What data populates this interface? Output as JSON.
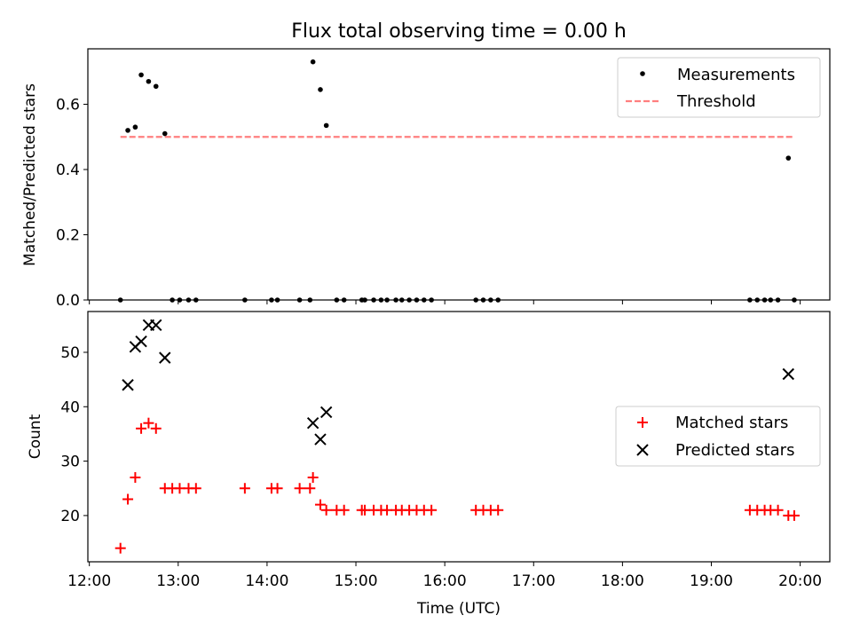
{
  "figure": {
    "title": "Flux total observing time = 0.00 h"
  },
  "chart_data": [
    {
      "type": "scatter",
      "title": "Flux total observing time = 0.00 h",
      "ylabel": "Matched/Predicted stars",
      "xlabel": "",
      "ylim": [
        0,
        0.77
      ],
      "yticks": [
        0.0,
        0.2,
        0.4,
        0.6
      ],
      "ytick_labels": [
        "0.0",
        "0.2",
        "0.4",
        "0.6"
      ],
      "legend_position": "upper-right",
      "series": [
        {
          "name": "Measurements",
          "style": "dot",
          "color": "#000000",
          "x": [
            "12:21",
            "12:26",
            "12:31",
            "12:35",
            "12:40",
            "12:45",
            "12:51",
            "12:56",
            "13:01",
            "13:07",
            "13:12",
            "13:45",
            "14:03",
            "14:07",
            "14:22",
            "14:29",
            "14:31",
            "14:36",
            "14:40",
            "14:47",
            "14:52",
            "15:04",
            "15:06",
            "15:12",
            "15:17",
            "15:21",
            "15:27",
            "15:31",
            "15:36",
            "15:41",
            "15:46",
            "15:51",
            "16:21",
            "16:26",
            "16:31",
            "16:36",
            "19:26",
            "19:31",
            "19:36",
            "19:40",
            "19:45",
            "19:52",
            "19:56"
          ],
          "y": [
            0,
            0.52,
            0.53,
            0.69,
            0.67,
            0.655,
            0.51,
            0,
            0,
            0,
            0,
            0,
            0,
            0,
            0,
            0,
            0.73,
            0.645,
            0.535,
            0,
            0,
            0,
            0,
            0,
            0,
            0,
            0,
            0,
            0,
            0,
            0,
            0,
            0,
            0,
            0,
            0,
            0,
            0,
            0,
            0,
            0,
            0.435,
            0
          ]
        },
        {
          "name": "Threshold",
          "style": "dashed-line",
          "color": "#ff7f7f",
          "x": [
            "12:21",
            "19:56"
          ],
          "y": [
            0.5,
            0.5
          ]
        }
      ]
    },
    {
      "type": "scatter",
      "ylabel": "Count",
      "xlabel": "Time (UTC)",
      "ylim": [
        11.5,
        57.5
      ],
      "yticks": [
        20,
        30,
        40,
        50
      ],
      "ytick_labels": [
        "20",
        "30",
        "40",
        "50"
      ],
      "xlim": [
        "11:59",
        "20:20"
      ],
      "xticks": [
        "12:00",
        "13:00",
        "14:00",
        "15:00",
        "16:00",
        "17:00",
        "18:00",
        "19:00",
        "20:00"
      ],
      "xtick_labels": [
        "12:00",
        "13:00",
        "14:00",
        "15:00",
        "16:00",
        "17:00",
        "18:00",
        "19:00",
        "20:00"
      ],
      "legend_position": "center-right",
      "series": [
        {
          "name": "Matched stars",
          "marker": "plus",
          "color": "#ff0000",
          "x": [
            "12:21",
            "12:26",
            "12:31",
            "12:35",
            "12:40",
            "12:45",
            "12:51",
            "12:56",
            "13:01",
            "13:07",
            "13:12",
            "13:45",
            "14:03",
            "14:07",
            "14:22",
            "14:29",
            "14:31",
            "14:36",
            "14:40",
            "14:47",
            "14:52",
            "15:04",
            "15:06",
            "15:12",
            "15:17",
            "15:21",
            "15:27",
            "15:31",
            "15:36",
            "15:41",
            "15:46",
            "15:51",
            "16:21",
            "16:26",
            "16:31",
            "16:36",
            "19:26",
            "19:31",
            "19:36",
            "19:40",
            "19:45",
            "19:52",
            "19:56"
          ],
          "y": [
            14,
            23,
            27,
            36,
            37,
            36,
            25,
            25,
            25,
            25,
            25,
            25,
            25,
            25,
            25,
            25,
            27,
            22,
            21,
            21,
            21,
            21,
            21,
            21,
            21,
            21,
            21,
            21,
            21,
            21,
            21,
            21,
            21,
            21,
            21,
            21,
            21,
            21,
            21,
            21,
            21,
            20,
            20
          ]
        },
        {
          "name": "Predicted stars",
          "marker": "x",
          "color": "#000000",
          "x": [
            "12:26",
            "12:31",
            "12:35",
            "12:40",
            "12:45",
            "12:51",
            "14:31",
            "14:36",
            "14:40",
            "19:52"
          ],
          "y": [
            44,
            51,
            52,
            55,
            55,
            49,
            37,
            34,
            39,
            46
          ]
        }
      ]
    }
  ]
}
